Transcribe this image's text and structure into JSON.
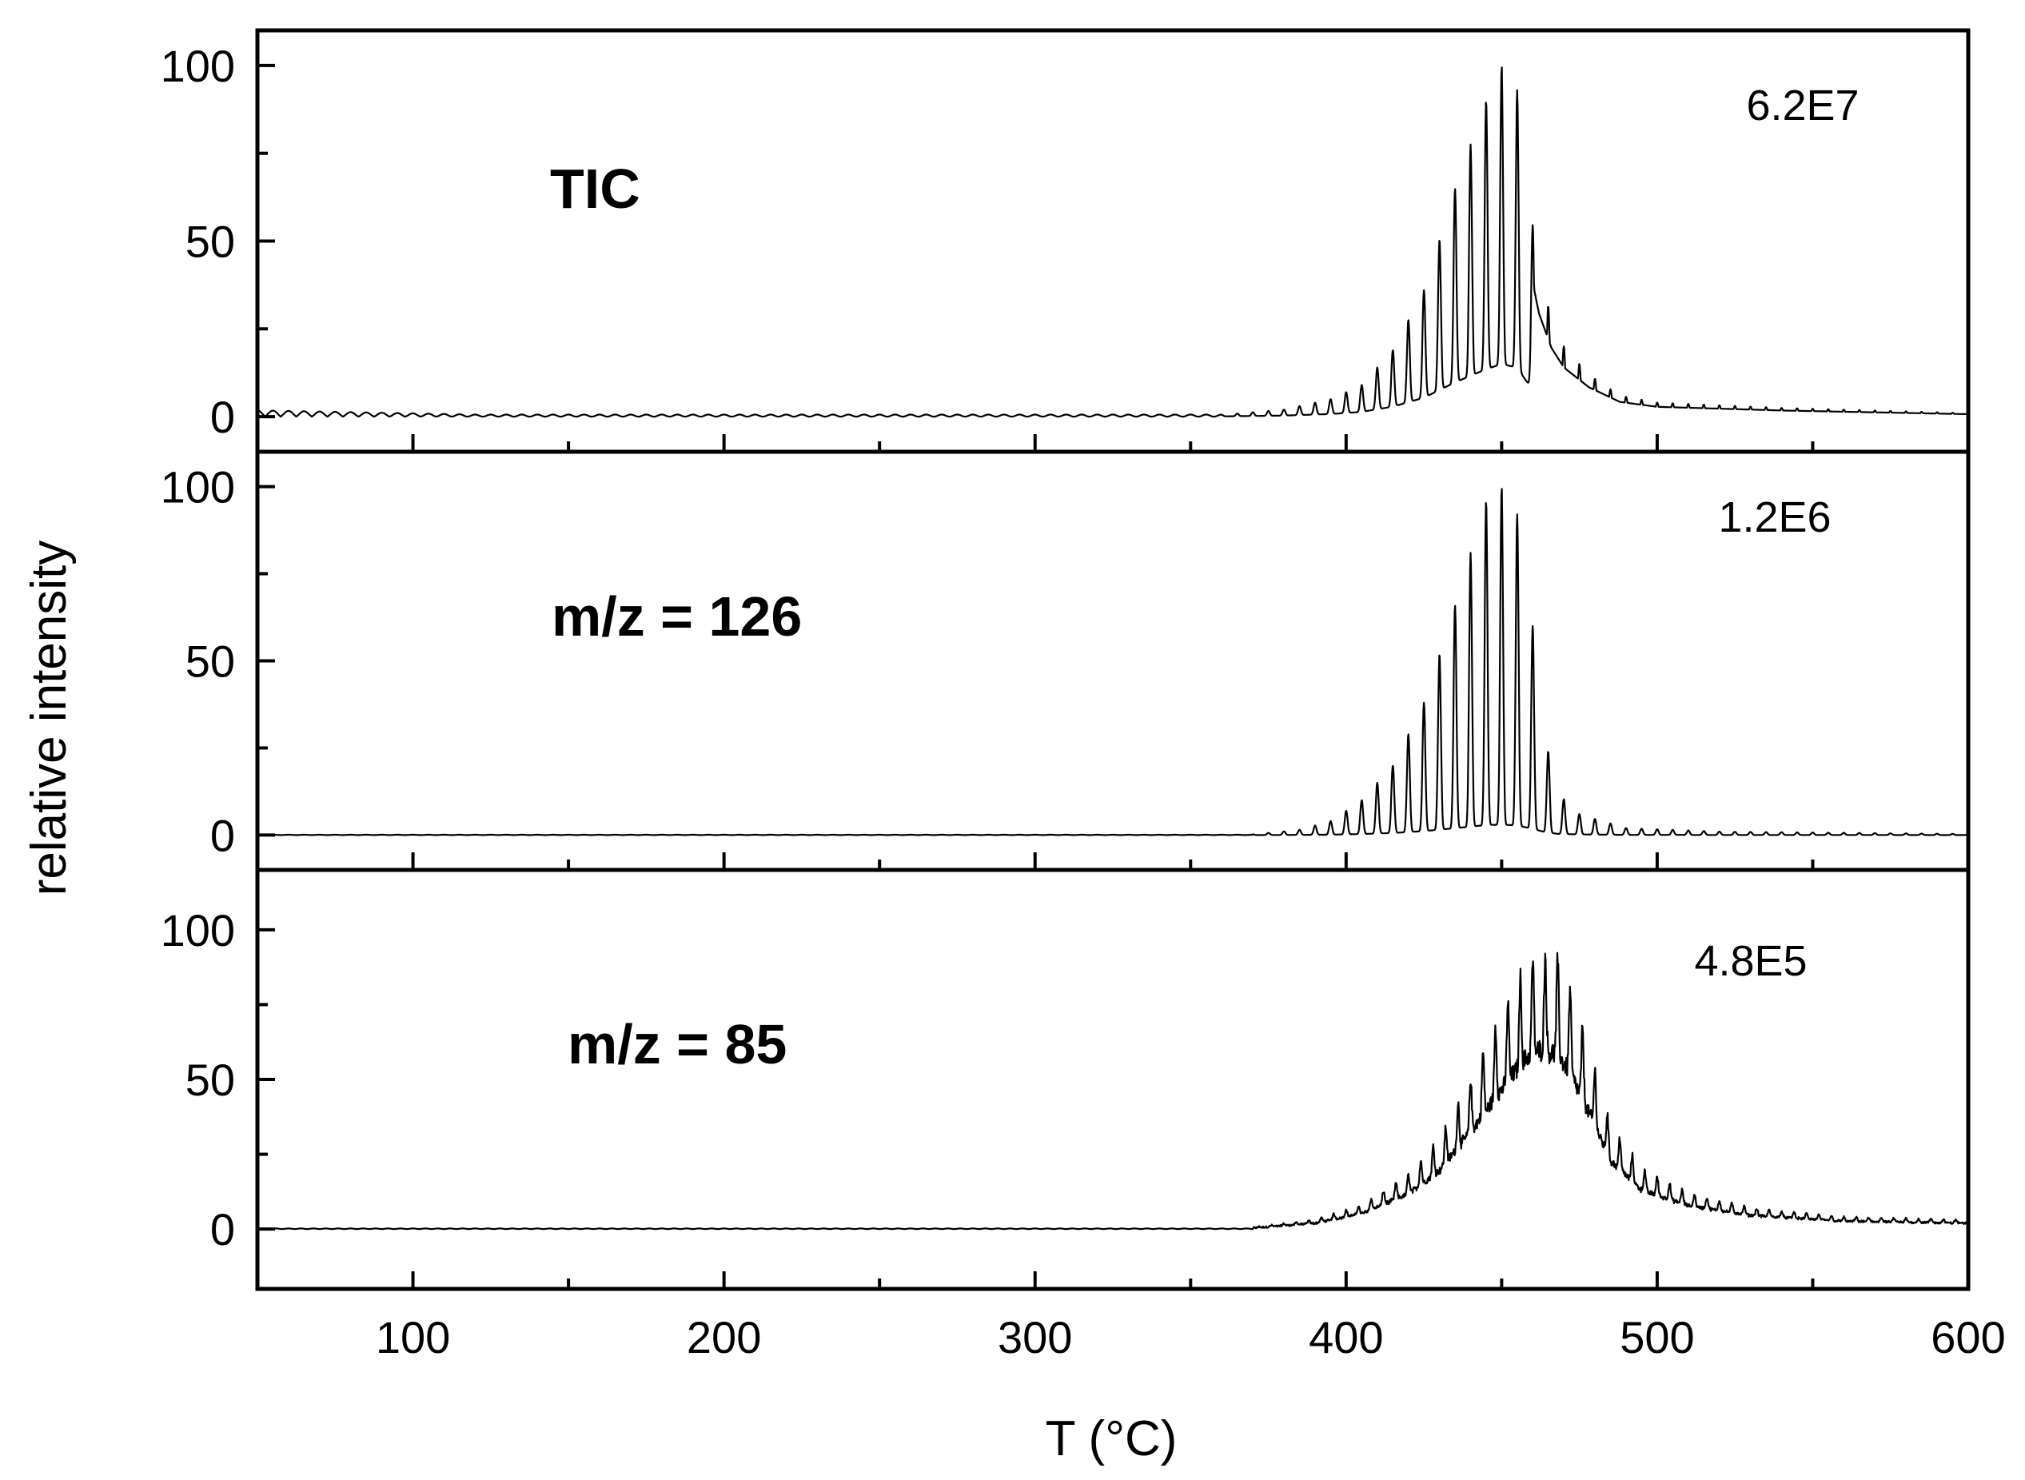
{
  "chart_data": {
    "type": "line",
    "xlabel": "T (°C)",
    "ylabel": "relative intensity",
    "xlim": [
      50,
      600
    ],
    "x_ticks": [
      100,
      200,
      300,
      400,
      500,
      600
    ],
    "x_minor_step": 50,
    "panels": [
      {
        "label": "TIC",
        "scale": "6.2E7",
        "ylim": [
          -10,
          110
        ],
        "y_ticks": [
          0,
          50,
          100
        ],
        "series": {
          "baseline_start": 50,
          "baseline_level": 0.6,
          "rise_start": 360,
          "peak_center": 450,
          "peak_spacing": 5,
          "envelope": [
            [
              360,
              0.5
            ],
            [
              380,
              2
            ],
            [
              395,
              5
            ],
            [
              405,
              9
            ],
            [
              415,
              19
            ],
            [
              425,
              36
            ],
            [
              435,
              65
            ],
            [
              445,
              90
            ],
            [
              450,
              100
            ],
            [
              455,
              93
            ],
            [
              458,
              67
            ],
            [
              462,
              42
            ],
            [
              466,
              28
            ],
            [
              470,
              20
            ],
            [
              478,
              12
            ],
            [
              488,
              6
            ],
            [
              500,
              4
            ],
            [
              540,
              2.5
            ],
            [
              600,
              1
            ]
          ],
          "modulation": 0.85
        }
      },
      {
        "label": "m/z = 126",
        "scale": "1.2E6",
        "ylim": [
          -10,
          110
        ],
        "y_ticks": [
          0,
          50,
          100
        ],
        "series": {
          "baseline_start": 50,
          "baseline_level": 0.1,
          "rise_start": 370,
          "peak_center": 450,
          "peak_spacing": 5,
          "envelope": [
            [
              370,
              0.2
            ],
            [
              385,
              1.5
            ],
            [
              395,
              4
            ],
            [
              405,
              10
            ],
            [
              415,
              20
            ],
            [
              425,
              38
            ],
            [
              435,
              66
            ],
            [
              445,
              96
            ],
            [
              450,
              100
            ],
            [
              455,
              92
            ],
            [
              460,
              60
            ],
            [
              464,
              28
            ],
            [
              468,
              12
            ],
            [
              475,
              6
            ],
            [
              490,
              2
            ],
            [
              520,
              1
            ],
            [
              600,
              0.3
            ]
          ],
          "modulation": 0.97
        }
      },
      {
        "label": "m/z = 85",
        "scale": "4.8E5",
        "ylim": [
          -20,
          120
        ],
        "y_ticks": [
          0,
          50,
          100
        ],
        "series": {
          "baseline_start": 50,
          "baseline_level": 0.2,
          "rise_start": 370,
          "peak_center": 460,
          "peak_spacing": 4,
          "envelope": [
            [
              370,
              0.5
            ],
            [
              390,
              3
            ],
            [
              405,
              8
            ],
            [
              420,
              18
            ],
            [
              430,
              30
            ],
            [
              440,
              50
            ],
            [
              450,
              72
            ],
            [
              458,
              88
            ],
            [
              462,
              92
            ],
            [
              468,
              90
            ],
            [
              472,
              80
            ],
            [
              478,
              60
            ],
            [
              485,
              35
            ],
            [
              495,
              20
            ],
            [
              510,
              12
            ],
            [
              530,
              7
            ],
            [
              560,
              4
            ],
            [
              600,
              3
            ]
          ],
          "modulation": 0.35
        }
      }
    ]
  }
}
